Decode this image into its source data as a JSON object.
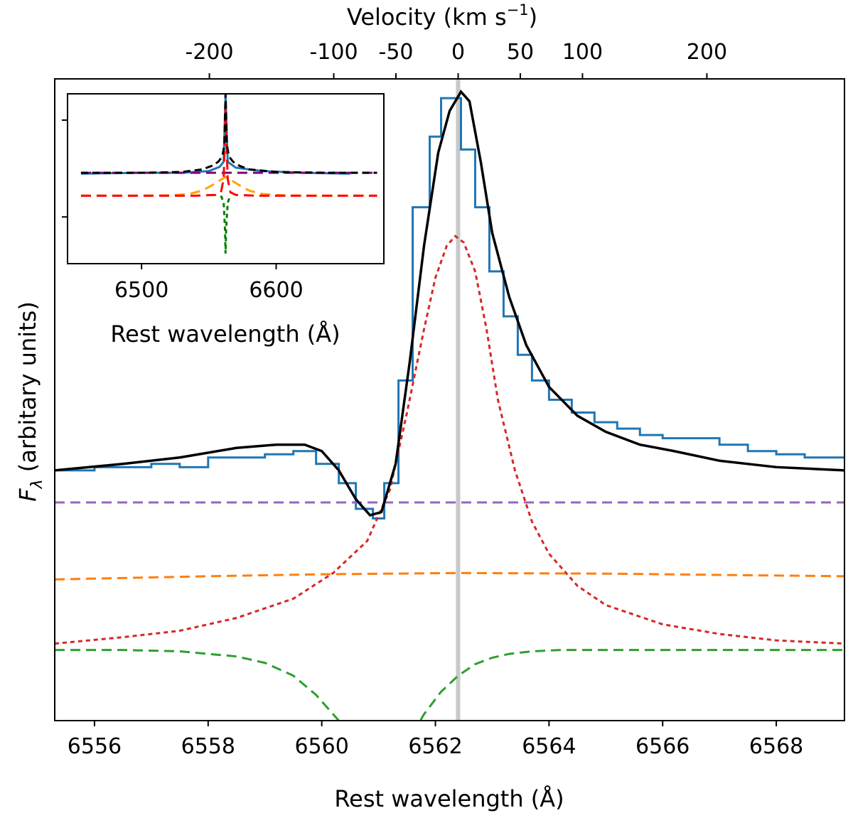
{
  "chart_data": [
    {
      "type": "line",
      "panel": "main",
      "xlabel": "Rest wavelength (Å)",
      "ylabel_main": "F",
      "ylabel_sub": "λ",
      "ylabel_rest": " (arbitary units)",
      "top_axis_label_prefix": "Velocity (km s",
      "top_axis_label_exp": "−1",
      "top_axis_label_suffix": ")",
      "xlim": [
        6555.3,
        6569.2
      ],
      "ylim": [
        0,
        1
      ],
      "y_tick_labels_shown": false,
      "x_ticks": [
        {
          "value": 6556,
          "label": "6556"
        },
        {
          "value": 6558,
          "label": "6558"
        },
        {
          "value": 6560,
          "label": "6560"
        },
        {
          "value": 6562,
          "label": "6562"
        },
        {
          "value": 6564,
          "label": "6564"
        },
        {
          "value": 6566,
          "label": "6566"
        },
        {
          "value": 6568,
          "label": "6568"
        }
      ],
      "top_ticks": [
        {
          "value": -200,
          "label": "-200"
        },
        {
          "value": -100,
          "label": "-100"
        },
        {
          "value": -50,
          "label": "-50"
        },
        {
          "value": 0,
          "label": "0"
        },
        {
          "value": 50,
          "label": "50"
        },
        {
          "value": 100,
          "label": "100"
        },
        {
          "value": 200,
          "label": "200"
        }
      ],
      "reference_line": {
        "x": 6562.4,
        "color": "#c8c8c8"
      },
      "observed": {
        "color": "#1f77b4",
        "style": "steps",
        "x": [
          6555.3,
          6556.0,
          6556.5,
          6557.0,
          6557.5,
          6558.0,
          6558.5,
          6559.0,
          6559.5,
          6559.9,
          6560.3,
          6560.6,
          6560.9,
          6561.1,
          6561.35,
          6561.6,
          6561.9,
          6562.1,
          6562.45,
          6562.7,
          6562.95,
          6563.2,
          6563.45,
          6563.7,
          6564.0,
          6564.4,
          6564.8,
          6565.2,
          6565.6,
          6566.0,
          6566.5,
          6567.0,
          6567.5,
          6568.0,
          6568.5,
          6569.2
        ],
        "y": [
          0.39,
          0.395,
          0.395,
          0.4,
          0.395,
          0.41,
          0.41,
          0.415,
          0.42,
          0.4,
          0.37,
          0.33,
          0.315,
          0.37,
          0.53,
          0.8,
          0.91,
          0.97,
          0.89,
          0.8,
          0.7,
          0.63,
          0.57,
          0.53,
          0.5,
          0.48,
          0.465,
          0.455,
          0.445,
          0.44,
          0.44,
          0.43,
          0.42,
          0.415,
          0.41,
          0.41
        ]
      },
      "components": [
        {
          "name": "",
          "role": "total fit",
          "color": "#000000",
          "dash": "solid",
          "x": [
            6555.3,
            6556.5,
            6557.5,
            6558.5,
            6559.2,
            6559.7,
            6560.0,
            6560.3,
            6560.6,
            6560.85,
            6561.05,
            6561.3,
            6561.55,
            6561.8,
            6562.05,
            6562.25,
            6562.45,
            6562.6,
            6562.8,
            6563.0,
            6563.3,
            6563.6,
            6564.0,
            6564.5,
            6565.0,
            6565.6,
            6566.2,
            6567.0,
            6568.0,
            6569.2
          ],
          "y": [
            0.39,
            0.4,
            0.41,
            0.425,
            0.43,
            0.43,
            0.42,
            0.39,
            0.345,
            0.32,
            0.325,
            0.4,
            0.56,
            0.74,
            0.885,
            0.95,
            0.98,
            0.965,
            0.87,
            0.76,
            0.66,
            0.585,
            0.52,
            0.475,
            0.45,
            0.43,
            0.42,
            0.405,
            0.395,
            0.39
          ]
        },
        {
          "name": "",
          "role": "narrow emission",
          "color": "#d62728",
          "dash": "short",
          "x": [
            6555.3,
            6556.5,
            6557.5,
            6558.5,
            6559.5,
            6560.2,
            6560.8,
            6561.2,
            6561.5,
            6561.8,
            6562.0,
            6562.2,
            6562.35,
            6562.5,
            6562.7,
            6562.9,
            6563.1,
            6563.4,
            6563.7,
            6564.0,
            6564.5,
            6565.0,
            6565.5,
            6566.0,
            6567.0,
            6568.0,
            6569.2
          ],
          "y": [
            0.12,
            0.13,
            0.14,
            0.16,
            0.19,
            0.23,
            0.28,
            0.36,
            0.48,
            0.61,
            0.69,
            0.74,
            0.755,
            0.745,
            0.7,
            0.61,
            0.5,
            0.39,
            0.31,
            0.26,
            0.21,
            0.18,
            0.165,
            0.15,
            0.135,
            0.125,
            0.12
          ]
        },
        {
          "name": "",
          "role": "continuum",
          "color": "#9467bd",
          "dash": "long",
          "x": [
            6555.3,
            6569.2
          ],
          "y": [
            0.34,
            0.34
          ]
        },
        {
          "name": "",
          "role": "broad emission",
          "color": "#ff7f0e",
          "dash": "long",
          "x": [
            6555.3,
            6558.0,
            6560.0,
            6562.4,
            6565.0,
            6567.0,
            6569.2
          ],
          "y": [
            0.22,
            0.225,
            0.228,
            0.23,
            0.229,
            0.227,
            0.225
          ]
        },
        {
          "name": "",
          "role": "absorption",
          "color": "#2ca02c",
          "dash": "long",
          "x": [
            6555.3,
            6556.5,
            6557.5,
            6558.5,
            6559.0,
            6559.5,
            6559.9,
            6560.3,
            6560.6,
            6560.8
          ],
          "y": [
            0.11,
            0.11,
            0.108,
            0.1,
            0.09,
            0.07,
            0.04,
            0.0,
            -0.04,
            -0.08
          ]
        },
        {
          "name": "",
          "role": "absorption (red wing)",
          "color": "#2ca02c",
          "dash": "long",
          "x": [
            6561.6,
            6561.8,
            6562.1,
            6562.4,
            6562.7,
            6563.0,
            6563.3,
            6563.7,
            6564.2,
            6565.0,
            6566.0,
            6567.5,
            6569.2
          ],
          "y": [
            -0.02,
            0.01,
            0.045,
            0.07,
            0.088,
            0.098,
            0.104,
            0.108,
            0.11,
            0.11,
            0.11,
            0.11,
            0.11
          ]
        }
      ]
    },
    {
      "type": "line",
      "panel": "inset",
      "xlabel": "Rest wavelength (Å)",
      "xlim": [
        6445,
        6680
      ],
      "ylim": [
        0,
        1
      ],
      "x_ticks": [
        {
          "value": 6500,
          "label": "6500"
        },
        {
          "value": 6600,
          "label": "6600"
        }
      ],
      "y_tick_values": [
        0.275,
        0.845
      ],
      "components": [
        {
          "role": "observed",
          "color": "#1f77b4",
          "dash": "solid",
          "x": [
            6455,
            6500,
            6530,
            6550,
            6558,
            6561,
            6562.4,
            6564,
            6570,
            6590,
            6620,
            6655
          ],
          "y": [
            0.53,
            0.535,
            0.535,
            0.545,
            0.57,
            0.6,
            0.99,
            0.6,
            0.565,
            0.545,
            0.535,
            0.53
          ]
        },
        {
          "role": "continuum",
          "color": "#800080",
          "dash": "long",
          "x": [
            6455,
            6675
          ],
          "y": [
            0.535,
            0.535
          ]
        },
        {
          "role": "broad emission",
          "color": "#ffa500",
          "dash": "long",
          "x": [
            6455,
            6500,
            6520,
            6535,
            6545,
            6552,
            6558,
            6562.4,
            6567,
            6573,
            6580,
            6590,
            6605,
            6625,
            6675
          ],
          "y": [
            0.4,
            0.4,
            0.402,
            0.41,
            0.43,
            0.46,
            0.49,
            0.51,
            0.49,
            0.46,
            0.43,
            0.41,
            0.402,
            0.4,
            0.4
          ]
        },
        {
          "role": "narrow emission",
          "color": "#ff0000",
          "dash": "long",
          "x": [
            6455,
            6540,
            6555,
            6559,
            6561,
            6562,
            6562.4,
            6562.8,
            6564,
            6566,
            6570,
            6585,
            6675
          ],
          "y": [
            0.4,
            0.4,
            0.405,
            0.42,
            0.5,
            0.78,
            0.93,
            0.78,
            0.5,
            0.42,
            0.405,
            0.4,
            0.4
          ]
        },
        {
          "role": "absorption",
          "color": "#008000",
          "dash": "short",
          "x": [
            6559,
            6561,
            6562,
            6562.4,
            6562.8,
            6564,
            6566
          ],
          "y": [
            0.4,
            0.36,
            0.2,
            0.06,
            0.2,
            0.36,
            0.4
          ]
        },
        {
          "role": "total fit",
          "color": "#000000",
          "dash": "medium",
          "x": [
            6455,
            6500,
            6530,
            6545,
            6552,
            6557,
            6560,
            6561.5,
            6562.4,
            6563.3,
            6565,
            6568,
            6573,
            6580,
            6600,
            6640,
            6675
          ],
          "y": [
            0.535,
            0.535,
            0.54,
            0.555,
            0.575,
            0.6,
            0.63,
            0.7,
            1.0,
            0.7,
            0.63,
            0.6,
            0.575,
            0.555,
            0.54,
            0.535,
            0.535
          ]
        }
      ]
    }
  ]
}
